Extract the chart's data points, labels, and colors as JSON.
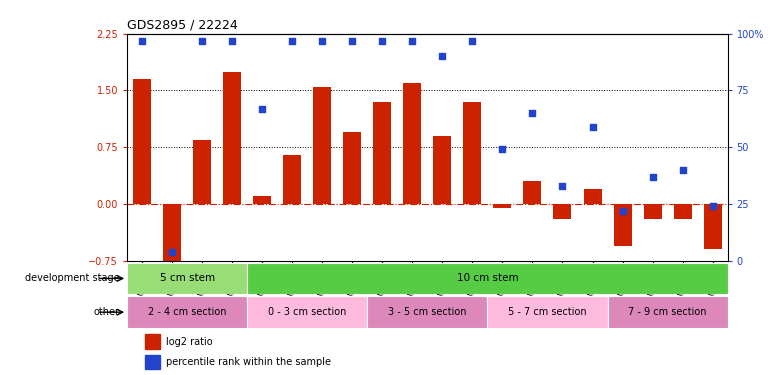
{
  "title": "GDS2895 / 22224",
  "samples_clean": [
    "GSM35570",
    "GSM35571",
    "GSM35721",
    "GSM35725",
    "GSM35565",
    "GSM35567",
    "GSM35568",
    "GSM35569",
    "GSM35726",
    "GSM35727",
    "GSM35728",
    "GSM35729",
    "GSM35978",
    "GSM36004",
    "GSM36011",
    "GSM36012",
    "GSM36013",
    "GSM36014",
    "GSM36015",
    "GSM36016"
  ],
  "log2_ratio": [
    1.65,
    -0.85,
    0.85,
    1.75,
    0.1,
    0.65,
    1.55,
    0.95,
    1.35,
    1.6,
    0.9,
    1.35,
    -0.05,
    0.3,
    -0.2,
    0.2,
    -0.55,
    -0.2,
    -0.2,
    -0.6
  ],
  "percentile": [
    97,
    4,
    97,
    97,
    67,
    97,
    97,
    97,
    97,
    97,
    90,
    97,
    49,
    65,
    33,
    59,
    22,
    37,
    40,
    24
  ],
  "ylim_left": [
    -0.75,
    2.25
  ],
  "ylim_right": [
    0,
    100
  ],
  "yticks_left": [
    -0.75,
    0,
    0.75,
    1.5,
    2.25
  ],
  "yticks_right": [
    0,
    25,
    50,
    75,
    100
  ],
  "hlines": [
    0.75,
    1.5
  ],
  "bar_color": "#cc2200",
  "dot_color": "#2244cc",
  "dev_stage_groups": [
    {
      "label": "5 cm stem",
      "start": 0,
      "end": 3,
      "color": "#99dd77"
    },
    {
      "label": "10 cm stem",
      "start": 4,
      "end": 19,
      "color": "#55cc44"
    }
  ],
  "other_groups": [
    {
      "label": "2 - 4 cm section",
      "start": 0,
      "end": 3,
      "color": "#dd88bb"
    },
    {
      "label": "0 - 3 cm section",
      "start": 4,
      "end": 7,
      "color": "#ffbbdd"
    },
    {
      "label": "3 - 5 cm section",
      "start": 8,
      "end": 11,
      "color": "#dd88bb"
    },
    {
      "label": "5 - 7 cm section",
      "start": 12,
      "end": 15,
      "color": "#ffbbdd"
    },
    {
      "label": "7 - 9 cm section",
      "start": 16,
      "end": 19,
      "color": "#dd88bb"
    }
  ]
}
